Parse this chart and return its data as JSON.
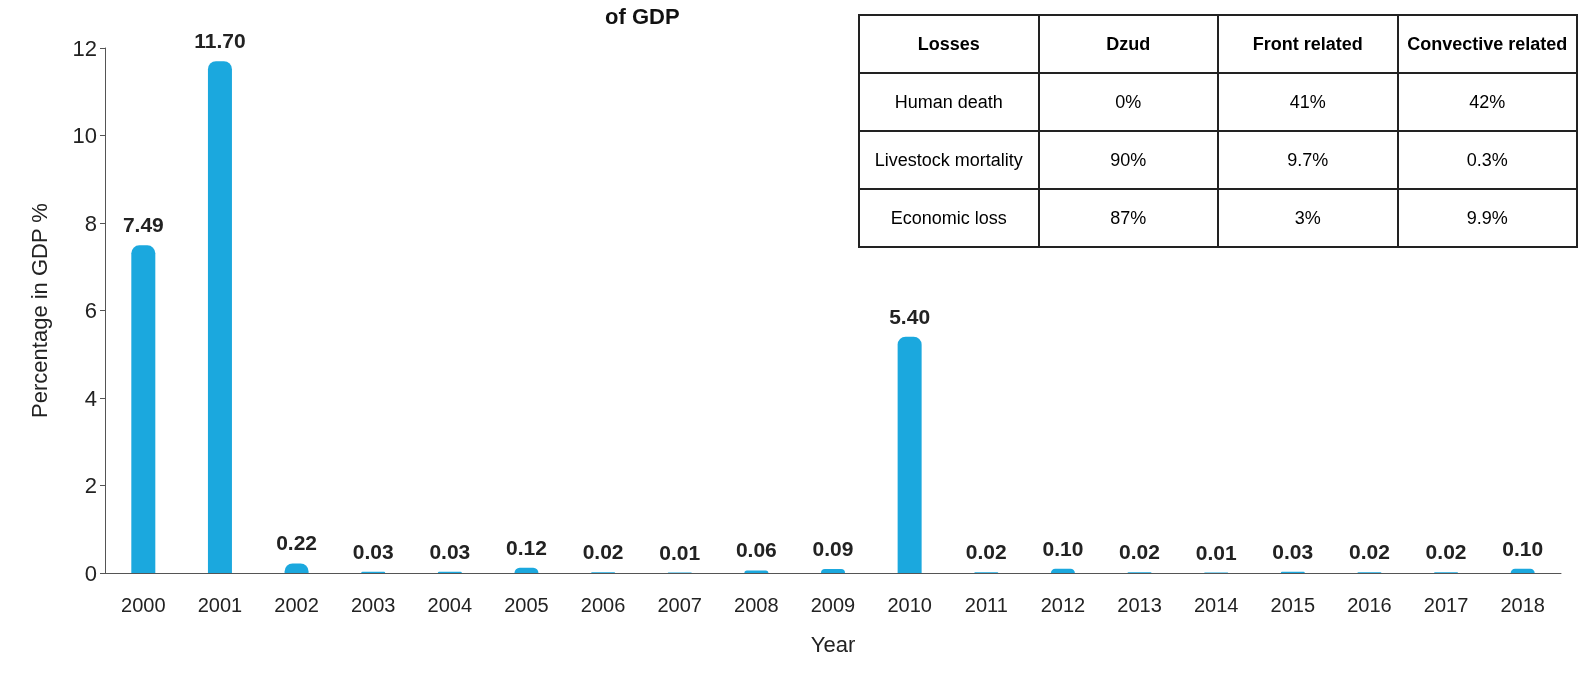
{
  "chart_data": [
    {
      "type": "bar",
      "title": "of GDP",
      "xlabel": "Year",
      "ylabel": "Percentage in GDP %",
      "categories": [
        "2000",
        "2001",
        "2002",
        "2003",
        "2004",
        "2005",
        "2006",
        "2007",
        "2008",
        "2009",
        "2010",
        "2011",
        "2012",
        "2013",
        "2014",
        "2015",
        "2016",
        "2017",
        "2018"
      ],
      "values": [
        7.49,
        11.7,
        0.22,
        0.03,
        0.03,
        0.12,
        0.02,
        0.01,
        0.06,
        0.09,
        5.4,
        0.02,
        0.1,
        0.02,
        0.01,
        0.03,
        0.02,
        0.02,
        0.1
      ],
      "value_labels": [
        "7.49",
        "11.70",
        "0.22",
        "0.03",
        "0.03",
        "0.12",
        "0.02",
        "0.01",
        "0.06",
        "0.09",
        "5.40",
        "0.02",
        "0.10",
        "0.02",
        "0.01",
        "0.03",
        "0.02",
        "0.02",
        "0.10"
      ],
      "color": "#1ba8de",
      "ylim": [
        0,
        12
      ],
      "yticks": [
        0,
        2,
        4,
        6,
        8,
        10,
        12
      ],
      "grid": false
    },
    {
      "type": "other",
      "legend_title": "Losses",
      "categories": [
        "Dzud",
        "Front related",
        "Convective related"
      ],
      "y_categories": [
        "Human death",
        "Livestock mortality",
        "Economic loss"
      ],
      "cell_labels": [
        [
          "0%",
          "41%",
          "42%"
        ],
        [
          "90%",
          "9.7%",
          "0.3%"
        ],
        [
          "87%",
          "3%",
          "9.9%"
        ]
      ]
    }
  ]
}
